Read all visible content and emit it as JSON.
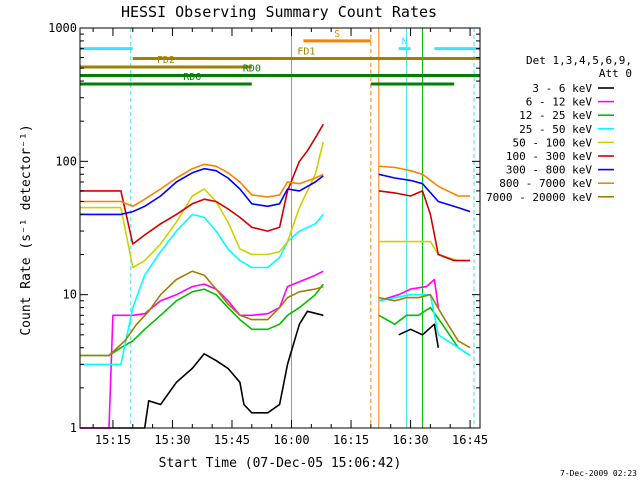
{
  "chart_data": {
    "type": "line",
    "title": "HESSI Observing Summary Count Rates",
    "ylabel": "Count Rate (s⁻¹ detector⁻¹)",
    "xlabel": "Start Time (07-Dec-05 15:06:42)",
    "xlim": [
      "15:06:42",
      "16:47:30"
    ],
    "ylim": [
      1,
      1000
    ],
    "yscale": "log",
    "x_ticks": [
      "15:15",
      "15:30",
      "15:45",
      "16:00",
      "16:15",
      "16:30",
      "16:45"
    ],
    "y_ticks": [
      {
        "value": 1,
        "label": "1"
      },
      {
        "value": 10,
        "label": "10"
      },
      {
        "value": 100,
        "label": "100"
      },
      {
        "value": 1000,
        "label": "1000"
      }
    ],
    "legend": {
      "header": [
        "Det 1,3,4,5,6,9,",
        "Att 0"
      ],
      "placement": "right"
    },
    "series": [
      {
        "name": "3 - 6 keV",
        "color": "#000000",
        "x": [
          "15:06:42",
          "15:17",
          "15:20",
          "15:23",
          "15:24",
          "15:27",
          "15:31",
          "15:35",
          "15:38",
          "15:41",
          "15:44",
          "15:47",
          "15:48",
          "15:50",
          "15:54",
          "15:57",
          "15:59",
          "16:02",
          "16:04",
          "16:08",
          null,
          "16:27",
          "16:30",
          "16:33",
          "16:36",
          "16:37"
        ],
        "y": [
          1.0,
          1.0,
          1.0,
          1.0,
          1.6,
          1.5,
          2.2,
          2.8,
          3.6,
          3.2,
          2.8,
          2.2,
          1.5,
          1.3,
          1.3,
          1.5,
          3.0,
          6.0,
          7.5,
          7.0,
          null,
          5.0,
          5.5,
          5.0,
          6.0,
          4.0
        ]
      },
      {
        "name": "6 - 12 keV",
        "color": "#ff00ff",
        "x": [
          "15:06:42",
          "15:14",
          "15:15",
          "15:18",
          "15:20",
          "15:23",
          "15:27",
          "15:31",
          "15:35",
          "15:38",
          "15:41",
          "15:44",
          "15:47",
          "15:50",
          "15:54",
          "15:57",
          "15:59",
          "16:02",
          "16:06",
          "16:08",
          null,
          "16:22",
          "16:27",
          "16:30",
          "16:34",
          "16:36",
          "16:37"
        ],
        "y": [
          1.0,
          1.0,
          7.0,
          7.0,
          7.0,
          7.2,
          9.0,
          10.0,
          11.5,
          12.0,
          11.0,
          9.0,
          7.0,
          7.0,
          7.2,
          8.0,
          11.5,
          12.5,
          14.0,
          15.0,
          null,
          9.0,
          10.0,
          11.0,
          11.5,
          13.0,
          8.0
        ]
      },
      {
        "name": "12 - 25 keV",
        "color": "#00c000",
        "x": [
          "15:06:42",
          "15:14",
          "15:17",
          "15:20",
          "15:23",
          "15:27",
          "15:31",
          "15:35",
          "15:38",
          "15:41",
          "15:44",
          "15:47",
          "15:50",
          "15:54",
          "15:57",
          "15:59",
          "16:02",
          "16:06",
          "16:08",
          null,
          "16:22",
          "16:26",
          "16:29",
          "16:32",
          "16:35",
          "16:38",
          "16:42",
          "16:45"
        ],
        "y": [
          3.5,
          3.5,
          4.0,
          4.5,
          5.5,
          7.0,
          9.0,
          10.5,
          11.0,
          10.0,
          8.0,
          6.5,
          5.5,
          5.5,
          6.0,
          7.0,
          8.0,
          10.0,
          12.0,
          null,
          7.0,
          6.0,
          7.0,
          7.0,
          8.0,
          6.0,
          4.0,
          3.5
        ]
      },
      {
        "name": "25 - 50 keV",
        "color": "#00ffff",
        "x": [
          "15:06:42",
          "15:17",
          "15:20",
          "15:23",
          "15:27",
          "15:31",
          "15:35",
          "15:38",
          "15:41",
          "15:44",
          "15:47",
          "15:50",
          "15:54",
          "15:57",
          "15:59",
          "16:02",
          "16:06",
          "16:08",
          null,
          "16:22",
          "16:30",
          "16:35",
          "16:37",
          "16:42",
          "16:45"
        ],
        "y": [
          3.0,
          3.0,
          8.0,
          14.0,
          21.0,
          30.0,
          40.0,
          38.0,
          30.0,
          22.0,
          18.0,
          16.0,
          16.0,
          19.0,
          25.0,
          30.0,
          34.0,
          40.0,
          null,
          9.0,
          10.0,
          10.0,
          5.0,
          4.0,
          3.5
        ]
      },
      {
        "name": "50 - 100 keV",
        "color": "#d0d000",
        "x": [
          "15:06:42",
          "15:17",
          "15:20",
          "15:23",
          "15:27",
          "15:31",
          "15:35",
          "15:38",
          "15:41",
          "15:44",
          "15:47",
          "15:50",
          "15:54",
          "15:57",
          "15:59",
          "16:02",
          "16:06",
          "16:08",
          null,
          "16:22",
          "16:30",
          "16:35",
          "16:37",
          "16:42",
          "16:45"
        ],
        "y": [
          45.0,
          45.0,
          16.0,
          18.0,
          24.0,
          35.0,
          55.0,
          62.0,
          50.0,
          35.0,
          22.0,
          20.0,
          20.0,
          21.0,
          25.0,
          45.0,
          80.0,
          140.0,
          null,
          25.0,
          25.0,
          25.0,
          20.0,
          18.0,
          18.0
        ]
      },
      {
        "name": "100 - 300 keV",
        "color": "#d00000",
        "x": [
          "15:06:42",
          "15:17",
          "15:20",
          "15:23",
          "15:27",
          "15:31",
          "15:35",
          "15:38",
          "15:41",
          "15:44",
          "15:47",
          "15:50",
          "15:54",
          "15:57",
          "15:59",
          "16:02",
          "16:04",
          "16:06",
          "16:08",
          null,
          "16:22",
          "16:26",
          "16:30",
          "16:33",
          "16:35",
          "16:37",
          "16:41",
          "16:45"
        ],
        "y": [
          60.0,
          60.0,
          24.0,
          28.0,
          34.0,
          40.0,
          48.0,
          52.0,
          50.0,
          44.0,
          38.0,
          32.0,
          30.0,
          32.0,
          60.0,
          100.0,
          120.0,
          150.0,
          190.0,
          null,
          60.0,
          58.0,
          55.0,
          60.0,
          40.0,
          20.0,
          18.0,
          18.0
        ]
      },
      {
        "name": "300 - 800 keV",
        "color": "#0000ff",
        "x": [
          "15:06:42",
          "15:17",
          "15:20",
          "15:23",
          "15:27",
          "15:31",
          "15:35",
          "15:38",
          "15:41",
          "15:44",
          "15:47",
          "15:50",
          "15:54",
          "15:57",
          "15:59",
          "16:02",
          "16:06",
          "16:08",
          null,
          "16:22",
          "16:26",
          "16:30",
          "16:33",
          "16:37",
          "16:42",
          "16:45"
        ],
        "y": [
          40.0,
          40.0,
          42.0,
          46.0,
          55.0,
          70.0,
          82.0,
          88.0,
          85.0,
          75.0,
          62.0,
          48.0,
          46.0,
          48.0,
          62.0,
          60.0,
          70.0,
          78.0,
          null,
          80.0,
          75.0,
          72.0,
          68.0,
          50.0,
          45.0,
          42.0
        ]
      },
      {
        "name": "800 - 7000 keV",
        "color": "#ff8000",
        "x": [
          "15:06:42",
          "15:17",
          "15:20",
          "15:23",
          "15:27",
          "15:31",
          "15:35",
          "15:38",
          "15:41",
          "15:44",
          "15:47",
          "15:50",
          "15:54",
          "15:57",
          "15:59",
          "16:02",
          "16:06",
          "16:08",
          null,
          "16:22",
          "16:26",
          "16:30",
          "16:33",
          "16:37",
          "16:42",
          "16:45"
        ],
        "y": [
          50.0,
          50.0,
          46.0,
          52.0,
          62.0,
          75.0,
          88.0,
          95.0,
          92.0,
          82.0,
          70.0,
          56.0,
          54.0,
          56.0,
          70.0,
          68.0,
          75.0,
          80.0,
          null,
          92.0,
          90.0,
          85.0,
          80.0,
          65.0,
          55.0,
          55.0
        ]
      },
      {
        "name": "7000 - 20000 keV",
        "color": "#a08000",
        "x": [
          "15:06:42",
          "15:14",
          "15:18",
          "15:21",
          "15:24",
          "15:27",
          "15:31",
          "15:35",
          "15:38",
          "15:41",
          "15:44",
          "15:47",
          "15:50",
          "15:54",
          "15:57",
          "15:59",
          "16:02",
          "16:06",
          "16:08",
          null,
          "16:22",
          "16:26",
          "16:29",
          "16:32",
          "16:35",
          "16:38",
          "16:42",
          "16:45"
        ],
        "y": [
          3.5,
          3.5,
          4.5,
          6.0,
          7.5,
          10.0,
          13.0,
          15.0,
          14.0,
          11.0,
          8.5,
          7.0,
          6.5,
          6.5,
          8.0,
          9.5,
          10.5,
          11.0,
          11.5,
          null,
          9.5,
          9.0,
          9.5,
          9.5,
          10.0,
          7.0,
          4.5,
          4.0
        ]
      }
    ],
    "flag_bars": [
      {
        "label": "N",
        "color": "#40e0ff",
        "segments": [
          [
            "15:06:42",
            "15:20"
          ],
          [
            "16:27",
            "16:30"
          ],
          [
            "16:36",
            "16:47:30"
          ]
        ],
        "level": 700
      },
      {
        "label": "S",
        "color": "#ff8000",
        "segments": [
          [
            "16:03",
            "16:20"
          ]
        ],
        "level": 800
      },
      {
        "label": "FD1",
        "color": "#a08000",
        "segments": [
          [
            "15:20",
            "16:47:30"
          ]
        ],
        "level": 590
      },
      {
        "label": "FD2",
        "color": "#a08000",
        "segments": [
          [
            "15:06:42",
            "15:50"
          ]
        ],
        "level": 510
      },
      {
        "label": "RD0",
        "color": "#008000",
        "segments": [
          [
            "15:06:42",
            "15:20"
          ],
          [
            "15:20",
            "16:20"
          ],
          [
            "16:20",
            "16:47:30"
          ]
        ],
        "level": 440
      },
      {
        "label": "RD6",
        "color": "#008000",
        "segments": [
          [
            "15:06:42",
            "15:20"
          ],
          [
            "15:20",
            "15:50"
          ],
          [
            "16:20",
            "16:41"
          ]
        ],
        "level": 380
      }
    ],
    "vertical_markers": [
      {
        "x": "15:06:42",
        "color": "#40e0ff",
        "style": "solid"
      },
      {
        "x": "15:19:30",
        "color": "#40e0ff",
        "style": "dashed"
      },
      {
        "x": "16:00",
        "color": "#ff8000",
        "style": "solid"
      },
      {
        "x": "16:20",
        "color": "#ff8000",
        "style": "dashed"
      },
      {
        "x": "16:22",
        "color": "#ff8000",
        "style": "solid"
      },
      {
        "x": "16:29",
        "color": "#40e0ff",
        "style": "solid"
      },
      {
        "x": "16:33",
        "color": "#00c000",
        "style": "solid"
      },
      {
        "x": "16:46",
        "color": "#40e0ff",
        "style": "dashed"
      }
    ]
  },
  "footer": {
    "timestamp": "7-Dec-2009 02:23"
  }
}
